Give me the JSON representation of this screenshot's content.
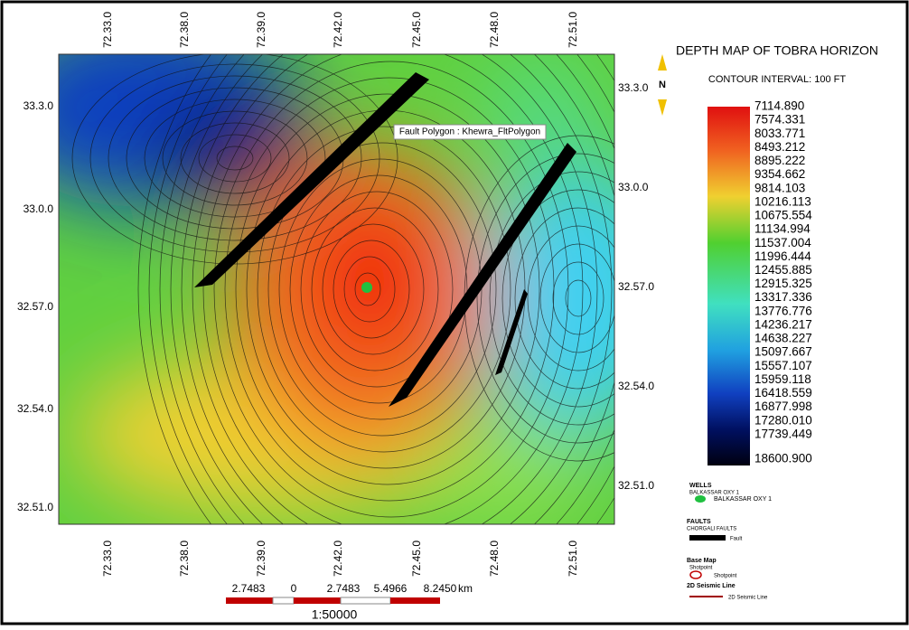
{
  "map": {
    "title": "DEPTH MAP OF TOBRA HORIZON",
    "subtitle": "CONTOUR INTERVAL: 100 FT",
    "north": "N",
    "fault_label": "Fault Polygon : Khewra_FltPolygon",
    "top_labels": [
      "72.33.0",
      "72.38.0",
      "72.39.0",
      "72.42.0",
      "72.45.0",
      "72.48.0",
      "72.51.0"
    ],
    "bottom_labels": [
      "72.33.0",
      "72.38.0",
      "72.39.0",
      "72.42.0",
      "72.45.0",
      "72.48.0",
      "72.51.0"
    ],
    "left_labels": [
      "33.3.0",
      "33.0.0",
      "32.57.0",
      "32.54.0",
      "32.51.0"
    ],
    "right_labels": [
      "33.3.0",
      "33.0.0",
      "32.57.0",
      "32.54.0",
      "32.51.0"
    ],
    "colorbar_labels": [
      "7114.890",
      "7574.331",
      "8033.771",
      "8493.212",
      "8895.222",
      "9354.662",
      "9814.103",
      "10216.113",
      "10675.554",
      "11134.994",
      "11537.004",
      "11996.444",
      "12455.885",
      "12915.325",
      "13317.336",
      "13776.776",
      "14236.217",
      "14638.227",
      "15097.667",
      "15557.107",
      "15959.118",
      "16418.559",
      "16877.998",
      "17280.010",
      "17739.449"
    ],
    "colorbar_bottom": "18600.900",
    "legend": {
      "wells_header": "WELLS",
      "wells_sub": "BALKASSAR OXY 1",
      "well_item": "BALKASSAR OXY 1",
      "faults_header": "FAULTS",
      "faults_sub": "CHORGALI FAULTS",
      "fault_item": "Fault",
      "base_header": "Base Map",
      "shot_sub": "Shotpoint",
      "shot_item": "Shotpoint",
      "seis_sub": "2D Seismic Line",
      "seis_item": "2D Seismic Line"
    },
    "scale": {
      "labels": [
        "2.7483",
        "0",
        "2.7483",
        "5.4966",
        "8.2450"
      ],
      "unit": "km",
      "ratio": "1:50000"
    }
  }
}
